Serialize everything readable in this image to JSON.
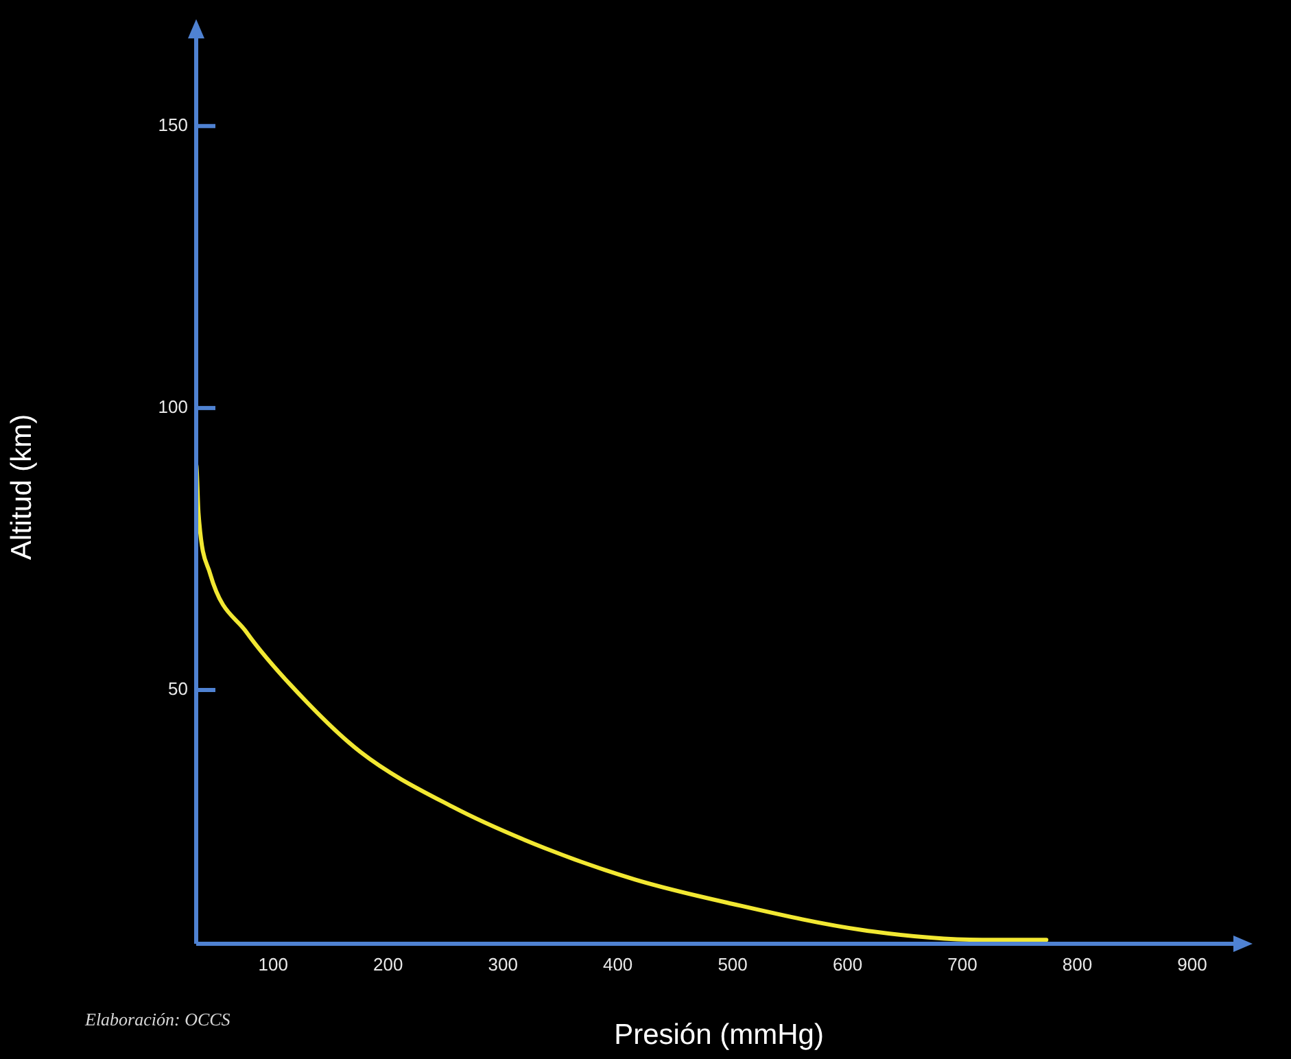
{
  "chart_data": {
    "type": "line",
    "xlabel": "Presión (mmHg)",
    "ylabel": "Altitud (km)",
    "annotations": [
      "Elaboración: OCCS"
    ],
    "xlim": [
      33,
      943
    ],
    "ylim": [
      5,
      167
    ],
    "xticks": [
      100,
      200,
      300,
      400,
      500,
      600,
      700,
      800,
      900
    ],
    "yticks": [
      50,
      100,
      150
    ],
    "grid": false,
    "legend": false,
    "marker": "none",
    "line_style": "solid",
    "series": [
      {
        "color": "#f2e832",
        "x": [
          33,
          33,
          35,
          45,
          77,
          117,
          176,
          256,
          336,
          415,
          495,
          614,
          717,
          773
        ],
        "values": [
          100,
          90,
          81.4,
          70.7,
          60.2,
          50.5,
          39,
          29.3,
          22,
          16.4,
          12.3,
          7.4,
          5.7,
          5.7
        ]
      }
    ]
  }
}
